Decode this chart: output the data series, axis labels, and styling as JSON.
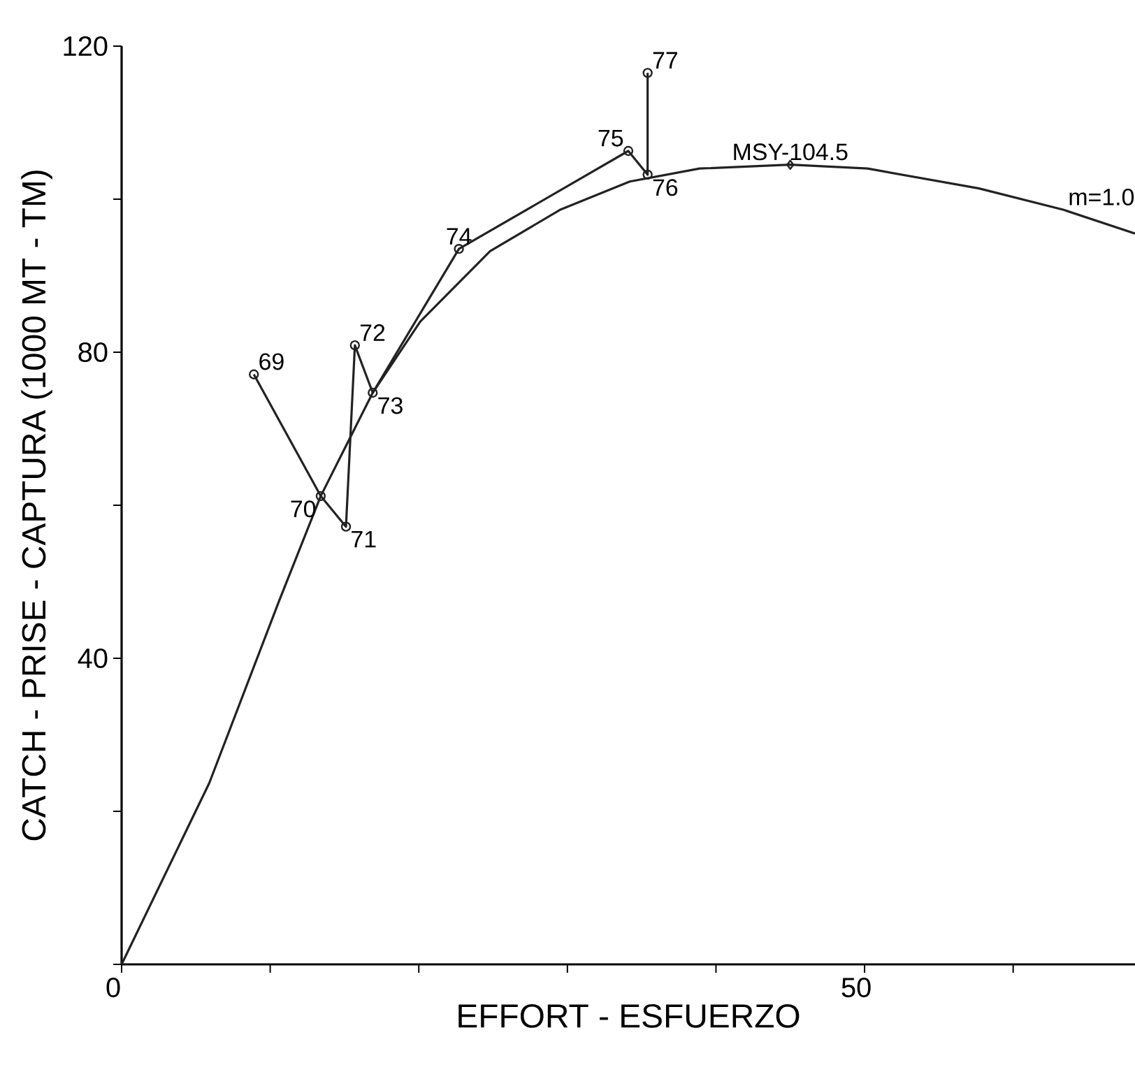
{
  "chart_data": {
    "type": "line",
    "xlabel": "EFFORT - ESFUERZO",
    "ylabel": "CATCH - PRISE - CAPTURA (1000 MT - TM)",
    "xlim": [
      0,
      68.2
    ],
    "ylim": [
      0,
      120
    ],
    "xticks": [
      {
        "value": 0,
        "label": "0"
      },
      {
        "value": 10,
        "label": null
      },
      {
        "value": 20,
        "label": null
      },
      {
        "value": 30,
        "label": null
      },
      {
        "value": 40,
        "label": null
      },
      {
        "value": 50,
        "label": "50"
      },
      {
        "value": 60,
        "label": null
      }
    ],
    "yticks": [
      {
        "value": 0,
        "label": null
      },
      {
        "value": 20,
        "label": null
      },
      {
        "value": 40,
        "label": "40"
      },
      {
        "value": 60,
        "label": null
      },
      {
        "value": 80,
        "label": "80"
      },
      {
        "value": 100,
        "label": null
      },
      {
        "value": 120,
        "label": "120"
      }
    ],
    "grid": false,
    "series": [
      {
        "marker": "circle",
        "color": "#222222",
        "x": [
          8.9,
          13.4,
          15.1,
          15.7,
          16.9,
          22.7,
          34.1,
          35.4,
          35.4
        ],
        "values": [
          77.1,
          61.2,
          57.2,
          80.9,
          74.7,
          93.5,
          106.3,
          103.2,
          116.5
        ]
      },
      {
        "marker": "none",
        "color": "#222222",
        "x": [
          0,
          5.9,
          10.6,
          13.4,
          16.9,
          20.1,
          24.8,
          29.5,
          34.2,
          38.9,
          45.0,
          50.2,
          57.7,
          63.4,
          68.2
        ],
        "values": [
          0,
          23.7,
          47.5,
          61.2,
          74.7,
          84.0,
          93.2,
          98.6,
          102.3,
          104.0,
          104.5,
          104.0,
          101.4,
          98.6,
          95.5
        ]
      },
      {
        "type": "scatter",
        "marker": "diamond",
        "color": "#222222",
        "x": [
          45.0
        ],
        "values": [
          104.5
        ]
      }
    ],
    "annotations": [
      {
        "text": "69",
        "x": 8.9,
        "y": 77.1
      },
      {
        "text": "70",
        "x": 13.4,
        "y": 61.2
      },
      {
        "text": "71",
        "x": 15.1,
        "y": 57.2
      },
      {
        "text": "72",
        "x": 15.7,
        "y": 80.9
      },
      {
        "text": "73",
        "x": 16.9,
        "y": 74.7
      },
      {
        "text": "74",
        "x": 22.7,
        "y": 93.5
      },
      {
        "text": "75",
        "x": 34.1,
        "y": 106.3
      },
      {
        "text": "76",
        "x": 35.4,
        "y": 103.2
      },
      {
        "text": "77",
        "x": 35.4,
        "y": 116.5
      },
      {
        "text": "MSY-104.5",
        "x": 45.0,
        "y": 104.5
      },
      {
        "text": "m=1.0",
        "x": 63.4,
        "y": 98.6
      }
    ]
  }
}
